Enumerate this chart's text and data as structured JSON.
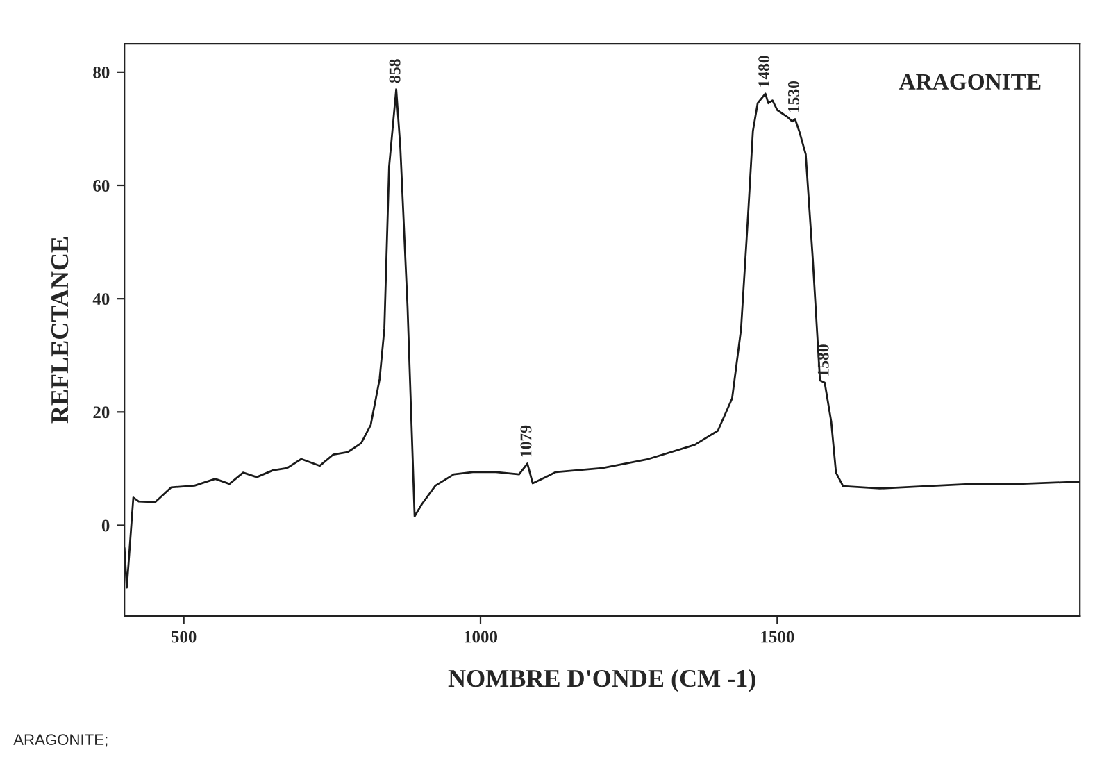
{
  "chart_data": {
    "type": "line",
    "title": "ARAGONITE",
    "xlabel": "NOMBRE D'ONDE (CM -1)",
    "ylabel": "REFLECTANCE",
    "x": [
      400,
      404,
      415,
      424,
      452,
      479,
      518,
      553,
      577,
      600,
      623,
      650,
      674,
      698,
      729,
      752,
      776,
      799,
      815,
      830,
      838,
      846,
      858,
      865,
      877,
      889,
      901,
      924,
      955,
      987,
      1026,
      1065,
      1079,
      1088,
      1112,
      1127,
      1205,
      1283,
      1361,
      1400,
      1424,
      1439,
      1451,
      1459,
      1467,
      1480,
      1485,
      1492,
      1500,
      1517,
      1525,
      1530,
      1537,
      1548,
      1560,
      1572,
      1580,
      1591,
      1599,
      1611,
      1673,
      1751,
      1829,
      1907,
      2009
    ],
    "series": [
      {
        "color": "#1a1a1a",
        "values": [
          -4,
          -11,
          4.9,
          4.2,
          4.1,
          6.7,
          7,
          8.2,
          7.3,
          9.3,
          8.5,
          9.7,
          10.1,
          11.7,
          10.5,
          12.5,
          12.9,
          14.5,
          17.7,
          25.8,
          34.7,
          63.3,
          77,
          66.5,
          38.7,
          1.6,
          3.7,
          7,
          9,
          9.4,
          9.4,
          9,
          10.9,
          7.4,
          8.6,
          9.4,
          10.1,
          11.7,
          14.2,
          16.7,
          22.4,
          34.6,
          55,
          69.6,
          74.5,
          76.2,
          74.5,
          75,
          73.3,
          72.1,
          71.3,
          71.7,
          69.6,
          65.5,
          46.8,
          25.6,
          25.2,
          18.3,
          9.3,
          6.9,
          6.5,
          6.9,
          7.3,
          7.3,
          7.7
        ]
      }
    ],
    "xlim": [
      400,
      2010
    ],
    "ylim": [
      -16,
      85
    ],
    "xticks": [
      500,
      1000,
      1500
    ],
    "yticks": [
      0,
      20,
      40,
      60,
      80
    ],
    "grid": false,
    "legend": false,
    "marker": "none",
    "line_style": "solid",
    "annotations": [
      {
        "text": "858",
        "x": 858,
        "y": 77
      },
      {
        "text": "1079",
        "x": 1079,
        "y": 10.9
      },
      {
        "text": "1480",
        "x": 1480,
        "y": 76.2
      },
      {
        "text": "1530",
        "x": 1530,
        "y": 71.7
      },
      {
        "text": "1580",
        "x": 1580,
        "y": 25.2
      },
      "ARAGONITE;"
    ]
  }
}
